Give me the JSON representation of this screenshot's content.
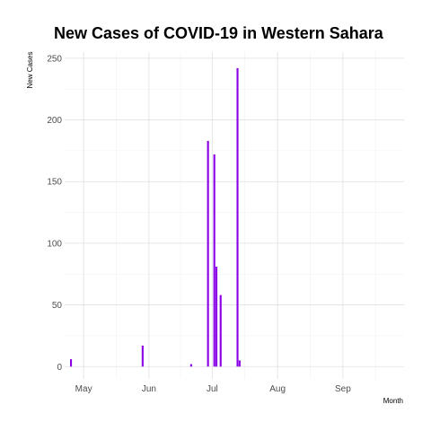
{
  "chart_data": {
    "type": "bar",
    "title": "New Cases of COVID-19 in Western Sahara",
    "xlabel": "Month",
    "ylabel": "New Cases",
    "x_range": [
      "2020-04-22",
      "2020-09-30"
    ],
    "ylim": [
      -10,
      255
    ],
    "y_ticks": [
      0,
      50,
      100,
      150,
      200,
      250
    ],
    "x_ticks": [
      {
        "date": "2020-05-01",
        "label": "May"
      },
      {
        "date": "2020-06-01",
        "label": "Jun"
      },
      {
        "date": "2020-07-01",
        "label": "Jul"
      },
      {
        "date": "2020-08-01",
        "label": "Aug"
      },
      {
        "date": "2020-09-01",
        "label": "Sep"
      }
    ],
    "grid": true,
    "bar_color": "#8A00E6",
    "points": [
      {
        "date": "2020-04-25",
        "value": 6
      },
      {
        "date": "2020-05-29",
        "value": 17
      },
      {
        "date": "2020-06-21",
        "value": 2
      },
      {
        "date": "2020-06-29",
        "value": 183
      },
      {
        "date": "2020-07-02",
        "value": 172
      },
      {
        "date": "2020-07-03",
        "value": 81
      },
      {
        "date": "2020-07-05",
        "value": 58
      },
      {
        "date": "2020-07-13",
        "value": 242
      },
      {
        "date": "2020-07-14",
        "value": 5
      }
    ]
  }
}
